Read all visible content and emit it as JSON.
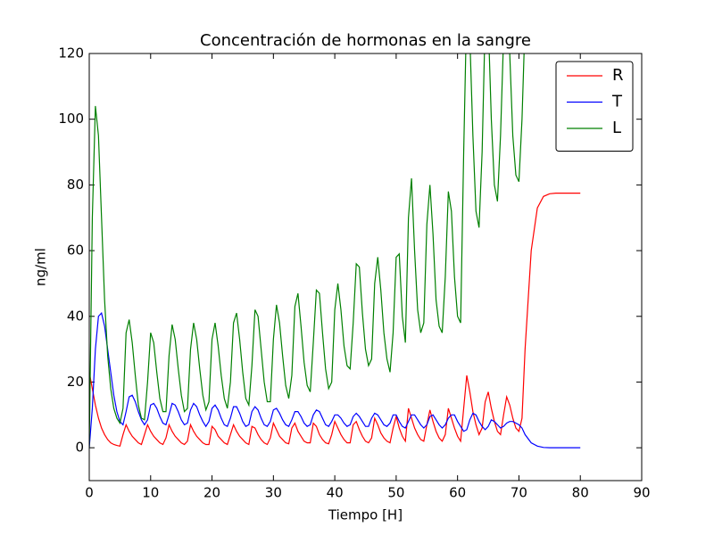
{
  "chart_data": {
    "type": "line",
    "title": "Concentración de hormonas en la sangre",
    "x_label": "Tiempo [H]",
    "y_label": "ng/ml",
    "xlim": [
      0,
      90
    ],
    "ylim": [
      -10,
      120
    ],
    "xticks": [
      0,
      10,
      20,
      30,
      40,
      50,
      60,
      70,
      80,
      90
    ],
    "yticks": [
      0,
      20,
      40,
      60,
      80,
      100,
      120
    ],
    "grid": false,
    "legend": "upper right",
    "x": [
      0,
      0.5,
      1,
      1.5,
      2,
      2.5,
      3,
      3.5,
      4,
      4.5,
      5,
      5.5,
      6,
      6.5,
      7,
      7.5,
      8,
      8.5,
      9,
      9.5,
      10,
      10.5,
      11,
      11.5,
      12,
      12.5,
      13,
      13.5,
      14,
      14.5,
      15,
      15.5,
      16,
      16.5,
      17,
      17.5,
      18,
      18.5,
      19,
      19.5,
      20,
      20.5,
      21,
      21.5,
      22,
      22.5,
      23,
      23.5,
      24,
      24.5,
      25,
      25.5,
      26,
      26.5,
      27,
      27.5,
      28,
      28.5,
      29,
      29.5,
      30,
      30.5,
      31,
      31.5,
      32,
      32.5,
      33,
      33.5,
      34,
      34.5,
      35,
      35.5,
      36,
      36.5,
      37,
      37.5,
      38,
      38.5,
      39,
      39.5,
      40,
      40.5,
      41,
      41.5,
      42,
      42.5,
      43,
      43.5,
      44,
      44.5,
      45,
      45.5,
      46,
      46.5,
      47,
      47.5,
      48,
      48.5,
      49,
      49.5,
      50,
      50.5,
      51,
      51.5,
      52,
      52.5,
      53,
      53.5,
      54,
      54.5,
      55,
      55.5,
      56,
      56.5,
      57,
      57.5,
      58,
      58.5,
      59,
      59.5,
      60,
      60.5,
      61,
      61.5,
      62,
      62.5,
      63,
      63.5,
      64,
      64.5,
      65,
      65.5,
      66,
      66.5,
      67,
      67.5,
      68,
      68.5,
      69,
      69.5,
      70,
      70.5,
      71,
      72,
      73,
      74,
      75,
      76,
      77,
      78,
      79,
      80
    ],
    "series": [
      {
        "name": "R",
        "color": "#ff0000",
        "values": [
          23,
          18,
          13,
          9,
          6,
          4,
          2.5,
          1.5,
          1,
          0.7,
          0.5,
          4,
          7,
          5,
          3.5,
          2.5,
          1.5,
          1,
          4,
          7,
          5,
          3.5,
          2.5,
          1.5,
          1,
          3,
          7,
          5,
          3.5,
          2.5,
          1.5,
          1,
          2,
          7,
          5,
          3.5,
          2.5,
          1.5,
          1,
          1,
          6.5,
          5.5,
          3.5,
          2.5,
          1.5,
          1,
          4,
          7,
          5,
          3.5,
          2.5,
          1.5,
          1,
          6.5,
          6,
          4,
          2.5,
          1.5,
          1,
          3,
          7.5,
          5.5,
          3.5,
          2.5,
          1.5,
          1.2,
          6,
          7.5,
          5,
          3.5,
          2,
          1.5,
          1.5,
          7.5,
          6.5,
          4,
          2.5,
          1.5,
          1.2,
          4,
          8,
          6,
          4,
          2.5,
          1.5,
          1.5,
          7,
          8,
          5.5,
          3.5,
          2,
          1.5,
          3,
          9,
          7,
          4.5,
          3,
          2,
          1.5,
          6,
          9.5,
          6,
          3.5,
          2,
          12,
          9,
          6,
          4,
          2.5,
          2,
          7,
          11.5,
          8,
          5,
          3,
          2,
          4,
          12,
          9,
          6,
          3.5,
          2,
          12,
          22,
          17,
          11,
          7,
          4,
          6,
          14,
          17,
          12,
          8,
          5,
          4,
          10,
          15.5,
          13,
          9,
          6,
          5,
          9,
          30,
          60,
          73,
          76.5,
          77.3,
          77.5,
          77.5,
          77.5,
          77.5,
          77.5
        ]
      },
      {
        "name": "T",
        "color": "#0000ff",
        "values": [
          0,
          12,
          30,
          40,
          41,
          37,
          30,
          23,
          16,
          11,
          8,
          7,
          11,
          15.5,
          16,
          14,
          11,
          8.5,
          7,
          8.5,
          13,
          13.5,
          12,
          9.5,
          7.5,
          7,
          10,
          13.5,
          13,
          11,
          8.5,
          7,
          7.5,
          11.5,
          13.5,
          12.5,
          10,
          8,
          6.5,
          8,
          12,
          13,
          11.5,
          9,
          7,
          6.5,
          9,
          12.5,
          12.5,
          10.5,
          8,
          6.5,
          7,
          11,
          12.5,
          11.5,
          9,
          7,
          6.5,
          8,
          11.5,
          12,
          10.5,
          8.5,
          7,
          6.5,
          8.5,
          11,
          11,
          9.5,
          7.5,
          6.5,
          7,
          10,
          11.5,
          11,
          9,
          7,
          6.5,
          8,
          10,
          10,
          9,
          7.5,
          6.5,
          7,
          9.5,
          10.5,
          9.5,
          8,
          6.5,
          6.5,
          9,
          10.5,
          10,
          8.5,
          7,
          6.5,
          7.5,
          10,
          10,
          8,
          6.5,
          6,
          8,
          10,
          10,
          8.5,
          7,
          6,
          7,
          9.5,
          10,
          8.5,
          7,
          6,
          7,
          9,
          10,
          10,
          8,
          6.5,
          5,
          5.5,
          8.5,
          10.5,
          10,
          8,
          6.5,
          5.5,
          6.5,
          8.5,
          8,
          7,
          6,
          6.5,
          7.5,
          8,
          8,
          7.5,
          7,
          6,
          4,
          1.5,
          0.5,
          0.1,
          0,
          0,
          0,
          0,
          0,
          0
        ]
      },
      {
        "name": "L",
        "color": "#008000",
        "values": [
          0,
          70,
          104,
          95,
          70,
          45,
          28,
          18,
          12,
          9,
          7.5,
          12,
          35,
          39,
          32,
          22,
          13,
          9,
          8.5,
          20,
          35,
          32,
          23,
          15,
          11,
          11,
          28,
          37.5,
          33,
          24,
          16,
          11,
          12,
          30,
          38,
          33,
          24,
          16,
          11.5,
          14,
          33,
          38,
          31,
          22,
          15,
          12,
          20,
          38,
          41,
          33,
          23,
          15,
          13,
          25,
          42,
          40,
          30,
          20,
          14,
          14,
          33,
          43.5,
          38,
          28,
          19,
          15,
          22,
          43,
          47,
          37,
          26,
          19,
          17,
          32,
          48,
          47,
          35,
          24,
          18,
          20,
          42,
          50,
          42,
          31,
          25,
          24,
          38,
          56,
          55,
          41,
          30,
          25,
          27,
          50,
          58,
          48,
          35,
          27,
          23,
          35,
          58,
          59,
          40,
          32,
          70,
          82,
          60,
          42,
          35,
          38,
          68,
          80,
          65,
          45,
          37,
          35,
          52,
          78,
          72,
          52,
          40,
          38,
          90,
          135,
          125,
          95,
          72,
          67,
          90,
          130,
          130,
          100,
          80,
          75,
          95,
          125,
          135,
          120,
          95,
          83,
          81,
          100,
          130,
          150,
          null,
          null,
          null,
          null,
          null,
          null,
          null,
          null
        ]
      }
    ]
  }
}
